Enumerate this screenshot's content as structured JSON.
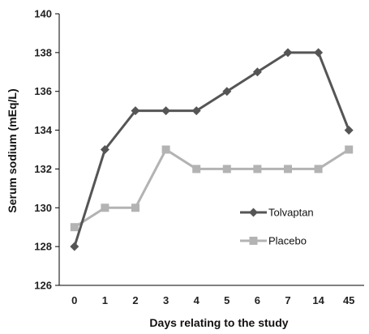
{
  "chart_data": {
    "type": "line",
    "title": "",
    "xlabel": "Days relating to the study",
    "ylabel": "Serum sodium (mEq/L)",
    "categories": [
      "0",
      "1",
      "2",
      "3",
      "4",
      "5",
      "6",
      "7",
      "14",
      "45"
    ],
    "ylim": [
      126,
      140
    ],
    "yticks": [
      "126",
      "128",
      "130",
      "132",
      "134",
      "136",
      "138",
      "140"
    ],
    "grid": false,
    "legend_position": "right",
    "series": [
      {
        "name": "Tolvaptan",
        "color": "#555555",
        "marker": "diamond",
        "values": [
          128,
          133,
          135,
          135,
          135,
          136,
          137,
          138,
          138,
          134
        ]
      },
      {
        "name": "Placebo",
        "color": "#b3b3b3",
        "marker": "square",
        "values": [
          129,
          130,
          130,
          133,
          132,
          132,
          132,
          132,
          132,
          133
        ]
      }
    ]
  }
}
